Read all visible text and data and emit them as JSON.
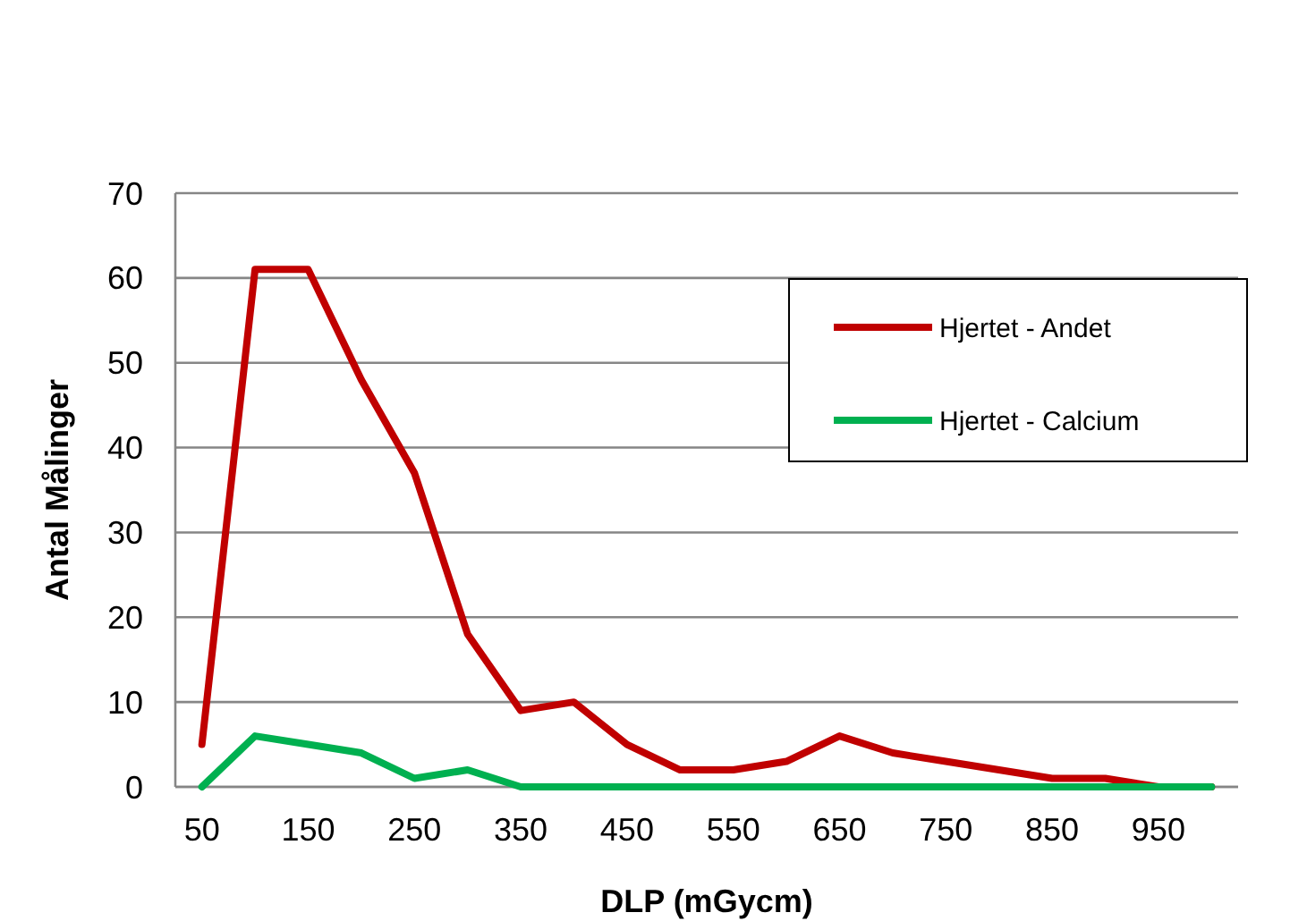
{
  "chart_data": {
    "type": "line",
    "xlabel": "DLP (mGycm)",
    "ylabel": "Antal Målinger",
    "categories": [
      "50",
      null,
      "150",
      null,
      "250",
      null,
      "350",
      null,
      "450",
      null,
      "550",
      null,
      "650",
      null,
      "750",
      null,
      "850",
      null,
      "950",
      null
    ],
    "series": [
      {
        "name": "Hjertet - Andet",
        "color": "#c00000",
        "values": [
          5,
          61,
          61,
          48,
          37,
          18,
          9,
          10,
          5,
          2,
          2,
          3,
          6,
          4,
          3,
          2,
          1,
          1,
          0,
          0
        ]
      },
      {
        "name": "Hjertet - Calcium",
        "color": "#00b050",
        "values": [
          0,
          6,
          5,
          4,
          1,
          2,
          0,
          0,
          0,
          0,
          0,
          0,
          0,
          0,
          0,
          0,
          0,
          0,
          0,
          0
        ]
      }
    ],
    "ylim": [
      0,
      70
    ],
    "yticks": [
      0,
      10,
      20,
      30,
      40,
      50,
      60,
      70
    ],
    "grid": "y",
    "legend": "right",
    "marker": "none",
    "line_style": "solid"
  }
}
